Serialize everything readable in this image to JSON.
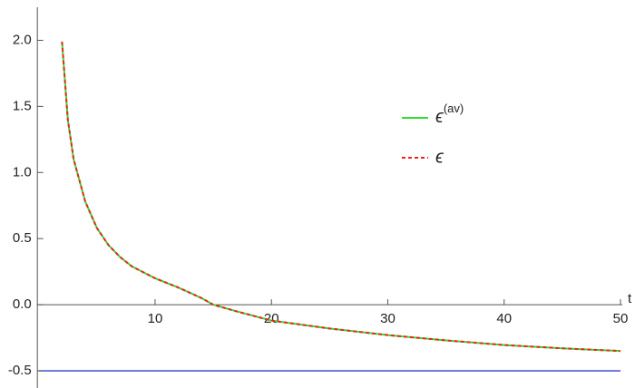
{
  "chart_data": {
    "type": "line",
    "x_label": "t",
    "x": [
      2,
      2.5,
      3,
      4,
      5,
      6,
      7,
      8,
      10,
      12,
      14,
      15,
      17,
      20,
      25,
      30,
      35,
      40,
      45,
      50
    ],
    "series": [
      {
        "name": "ϵ(av)",
        "color": "#33dd33",
        "dash": false,
        "values": [
          1.99,
          1.4,
          1.1,
          0.78,
          0.58,
          0.45,
          0.36,
          0.29,
          0.2,
          0.13,
          0.05,
          0.0,
          -0.05,
          -0.12,
          -0.18,
          -0.23,
          -0.27,
          -0.305,
          -0.33,
          -0.35
        ]
      },
      {
        "name": "ϵ",
        "color": "#ee2222",
        "dash": true,
        "values": [
          1.99,
          1.4,
          1.1,
          0.78,
          0.58,
          0.45,
          0.36,
          0.29,
          0.2,
          0.13,
          0.05,
          0.0,
          -0.05,
          -0.12,
          -0.18,
          -0.23,
          -0.27,
          -0.305,
          -0.33,
          -0.35
        ]
      }
    ],
    "reference_line": {
      "y": -0.5,
      "color": "#2a3bd6"
    },
    "xlim": [
      0,
      50
    ],
    "ylim": [
      -0.63,
      2.25
    ],
    "xticks": [
      10,
      20,
      30,
      40,
      50
    ],
    "yticks": [
      {
        "value": 2.0,
        "label": "2.0"
      },
      1.5,
      {
        "value": 1.0,
        "label": "1.0"
      },
      0.5,
      {
        "value": 0.0,
        "label": "0.0"
      },
      -0.5
    ]
  }
}
